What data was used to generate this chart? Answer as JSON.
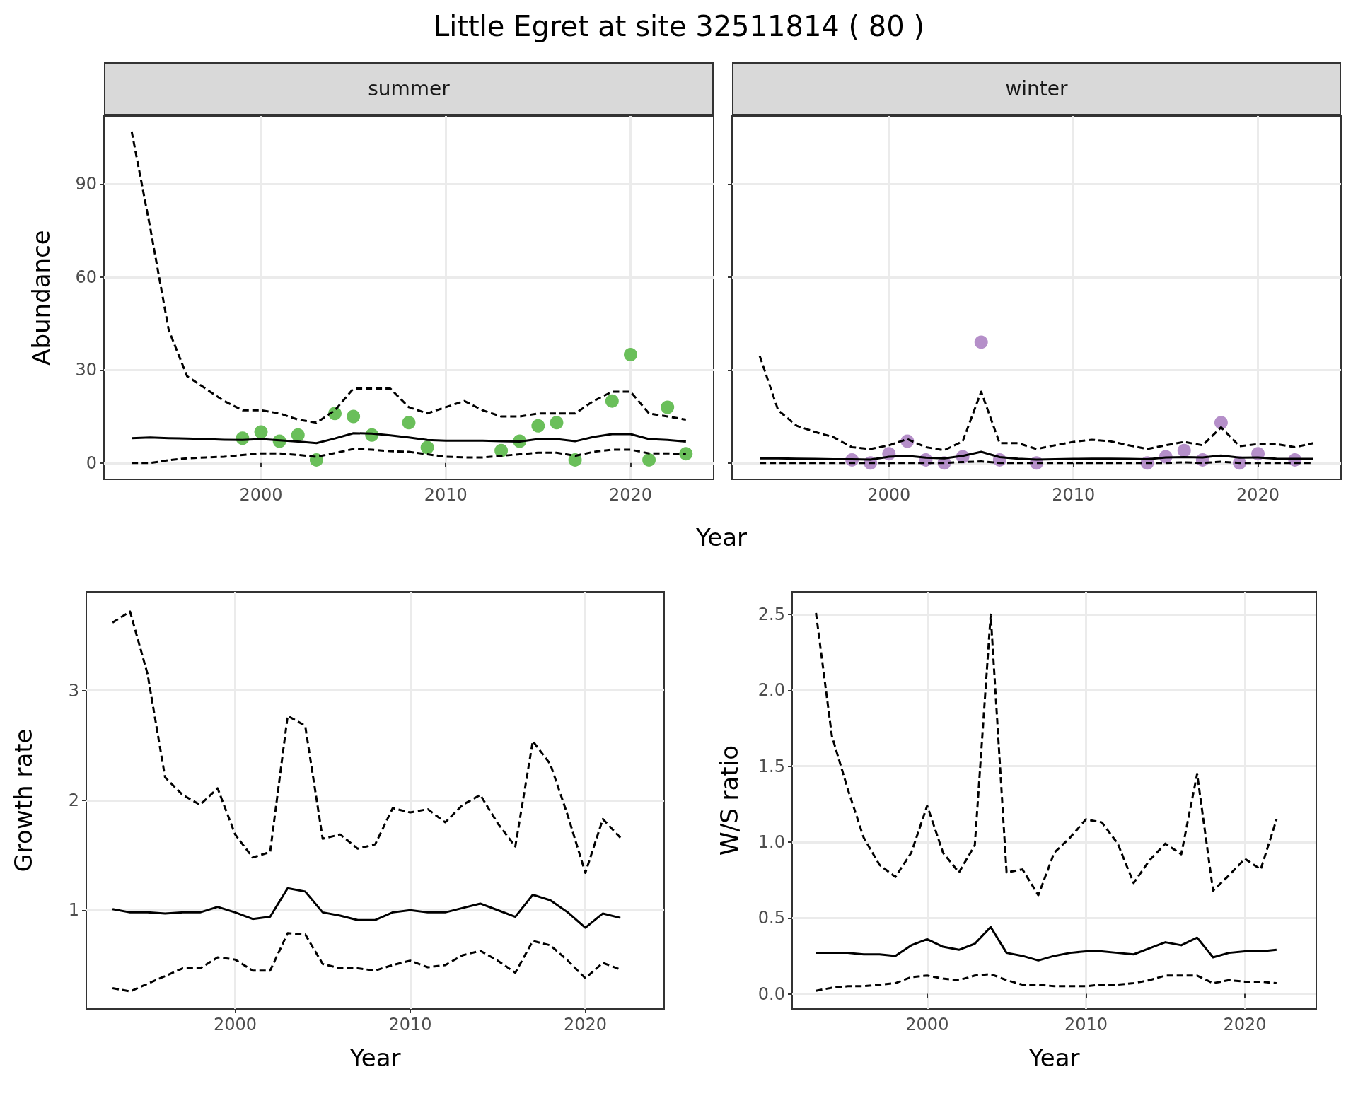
{
  "chart_data": [
    {
      "type": "line",
      "title": "Little Egret at site 32511814 ( 80 )",
      "subtitle": "summer",
      "xlabel": "Year",
      "ylabel": "Abundance",
      "xlim": [
        1991.5,
        2024.5
      ],
      "xticks": [
        2000,
        2010,
        2020
      ],
      "ylim": [
        -5.3,
        112
      ],
      "yticks": [
        0,
        30,
        60,
        90
      ],
      "grid": true,
      "marker": "none",
      "x": [
        1993,
        1994,
        1995,
        1996,
        1997,
        1998,
        1999,
        2000,
        2001,
        2002,
        2003,
        2004,
        2005,
        2006,
        2007,
        2008,
        2009,
        2010,
        2011,
        2012,
        2013,
        2014,
        2015,
        2016,
        2017,
        2018,
        2019,
        2020,
        2021,
        2022,
        2023
      ],
      "series": [
        {
          "color": "#000000",
          "line_style": "solid",
          "values": [
            8,
            8.2,
            8,
            7.9,
            7.7,
            7.5,
            7.4,
            7.7,
            7.3,
            6.9,
            6.4,
            7.9,
            9.6,
            9.5,
            8.9,
            8.2,
            7.4,
            7.2,
            7.2,
            7.2,
            7,
            6.9,
            7.7,
            7.7,
            7,
            8.4,
            9.3,
            9.3,
            7.7,
            7.4,
            6.9
          ]
        },
        {
          "color": "#000000",
          "line_style": "dashed",
          "values": [
            107,
            76,
            43,
            28,
            24,
            20,
            17,
            17,
            16,
            14,
            13,
            17,
            24,
            24,
            24,
            18,
            16,
            18,
            20,
            17,
            15,
            15,
            16,
            16,
            16,
            20,
            23,
            23,
            16,
            15,
            14
          ]
        },
        {
          "color": "#000000",
          "line_style": "dashed",
          "values": [
            0,
            0,
            0.9,
            1.5,
            1.8,
            2,
            2.6,
            3.1,
            3.1,
            2.6,
            2,
            3.2,
            4.5,
            4.3,
            3.8,
            3.6,
            2.8,
            2,
            1.8,
            1.8,
            2.3,
            2.8,
            3.3,
            3.3,
            2.3,
            3.6,
            4.3,
            4.3,
            3.1,
            3.1,
            2.9
          ]
        },
        {
          "type": "scatter",
          "color": "#6abf5a",
          "marker": "circle",
          "x": [
            1999,
            2000,
            2001,
            2002,
            2003,
            2004,
            2005,
            2006,
            2008,
            2009,
            2013,
            2014,
            2015,
            2016,
            2017,
            2019,
            2020,
            2021,
            2022,
            2023
          ],
          "values": [
            8,
            10,
            7,
            9,
            1,
            16,
            15,
            9,
            13,
            5,
            4,
            7,
            12,
            13,
            1,
            20,
            35,
            1,
            18,
            3
          ]
        }
      ]
    },
    {
      "type": "line",
      "subtitle": "winter",
      "xlim": [
        1991.5,
        2024.5
      ],
      "xticks": [
        2000,
        2010,
        2020
      ],
      "ylim": [
        -5.3,
        112
      ],
      "yticks": [
        0,
        30,
        60,
        90
      ],
      "tick_labels": "x",
      "grid": true,
      "marker": "none",
      "x": [
        1993,
        1994,
        1995,
        1996,
        1997,
        1998,
        1999,
        2000,
        2001,
        2002,
        2003,
        2004,
        2005,
        2006,
        2007,
        2008,
        2009,
        2010,
        2011,
        2012,
        2013,
        2014,
        2015,
        2016,
        2017,
        2018,
        2019,
        2020,
        2021,
        2022,
        2023
      ],
      "series": [
        {
          "color": "#000000",
          "line_style": "solid",
          "values": [
            1.5,
            1.5,
            1.4,
            1.3,
            1.2,
            1.2,
            1.1,
            2,
            2.3,
            1.7,
            1.5,
            2.3,
            3.6,
            1.9,
            1.4,
            1.1,
            1.2,
            1.3,
            1.4,
            1.4,
            1.3,
            1.2,
            1.8,
            1.9,
            1.8,
            2.4,
            1.7,
            1.8,
            1.4,
            1.3,
            1.3
          ]
        },
        {
          "color": "#000000",
          "line_style": "dashed",
          "values": [
            34.5,
            17,
            12,
            10,
            8.3,
            5.1,
            4.5,
            5.7,
            7.7,
            5.1,
            4.1,
            7,
            23,
            6.4,
            6.4,
            4.5,
            5.7,
            6.8,
            7.5,
            7,
            5.7,
            4.5,
            5.7,
            6.8,
            5.7,
            11.5,
            5.4,
            6.1,
            6.1,
            5.1,
            6.4
          ]
        },
        {
          "color": "#000000",
          "line_style": "dashed",
          "values": [
            0,
            0,
            0,
            0,
            0,
            0,
            0,
            0,
            0,
            0,
            0,
            0.3,
            0.5,
            0,
            0,
            0,
            0,
            0,
            0,
            0,
            0,
            0,
            0,
            0.2,
            0,
            0.4,
            0,
            0,
            0,
            0,
            0
          ]
        },
        {
          "type": "scatter",
          "color": "#b58fc9",
          "marker": "circle",
          "x": [
            1998,
            1999,
            2000,
            2001,
            2002,
            2003,
            2004,
            2005,
            2006,
            2008,
            2014,
            2015,
            2016,
            2017,
            2018,
            2019,
            2020,
            2022
          ],
          "values": [
            1,
            0,
            3,
            7,
            1,
            0,
            2,
            39,
            1,
            0,
            0,
            2,
            4,
            1,
            13,
            0,
            3,
            1
          ]
        }
      ]
    },
    {
      "type": "line",
      "xlabel": "Year",
      "ylabel": "Growth rate",
      "xlim": [
        1991.5,
        2024.5
      ],
      "xticks": [
        2000,
        2010,
        2020
      ],
      "ylim": [
        0.1,
        3.9
      ],
      "yticks": [
        1,
        2,
        3
      ],
      "grid": true,
      "marker": "none",
      "x": [
        1993,
        1994,
        1995,
        1996,
        1997,
        1998,
        1999,
        2000,
        2001,
        2002,
        2003,
        2004,
        2005,
        2006,
        2007,
        2008,
        2009,
        2010,
        2011,
        2012,
        2013,
        2014,
        2015,
        2016,
        2017,
        2018,
        2019,
        2020,
        2021,
        2022
      ],
      "series": [
        {
          "color": "#000000",
          "line_style": "solid",
          "values": [
            1.01,
            0.98,
            0.98,
            0.97,
            0.98,
            0.98,
            1.03,
            0.98,
            0.92,
            0.94,
            1.2,
            1.17,
            0.98,
            0.95,
            0.91,
            0.91,
            0.98,
            1,
            0.98,
            0.98,
            1.02,
            1.06,
            1,
            0.94,
            1.14,
            1.09,
            0.98,
            0.84,
            0.97,
            0.93
          ]
        },
        {
          "color": "#000000",
          "line_style": "dashed",
          "values": [
            3.62,
            3.72,
            3.15,
            2.21,
            2.05,
            1.96,
            2.11,
            1.69,
            1.48,
            1.53,
            2.77,
            2.68,
            1.65,
            1.69,
            1.56,
            1.6,
            1.93,
            1.89,
            1.92,
            1.8,
            1.96,
            2.05,
            1.79,
            1.58,
            2.54,
            2.33,
            1.86,
            1.34,
            1.83,
            1.66
          ]
        },
        {
          "color": "#000000",
          "line_style": "dashed",
          "values": [
            0.29,
            0.26,
            0.33,
            0.4,
            0.47,
            0.47,
            0.57,
            0.55,
            0.45,
            0.45,
            0.79,
            0.78,
            0.51,
            0.47,
            0.47,
            0.45,
            0.5,
            0.54,
            0.48,
            0.5,
            0.59,
            0.63,
            0.54,
            0.43,
            0.72,
            0.68,
            0.54,
            0.38,
            0.52,
            0.46
          ]
        }
      ]
    },
    {
      "type": "line",
      "xlabel": "Year",
      "ylabel": "W/S ratio",
      "xlim": [
        1991.5,
        2024.5
      ],
      "xticks": [
        2000,
        2010,
        2020
      ],
      "ylim": [
        -0.1,
        2.65
      ],
      "yticks": [
        {
          "value": 0,
          "label": "0.0"
        },
        0.5,
        {
          "value": 1,
          "label": "1.0"
        },
        1.5,
        {
          "value": 2,
          "label": "2.0"
        },
        2.5
      ],
      "grid": true,
      "marker": "none",
      "x": [
        1993,
        1994,
        1995,
        1996,
        1997,
        1998,
        1999,
        2000,
        2001,
        2002,
        2003,
        2004,
        2005,
        2006,
        2007,
        2008,
        2009,
        2010,
        2011,
        2012,
        2013,
        2014,
        2015,
        2016,
        2017,
        2018,
        2019,
        2020,
        2021,
        2022
      ],
      "series": [
        {
          "color": "#000000",
          "line_style": "solid",
          "values": [
            0.27,
            0.27,
            0.27,
            0.26,
            0.26,
            0.25,
            0.32,
            0.36,
            0.31,
            0.29,
            0.33,
            0.44,
            0.27,
            0.25,
            0.22,
            0.25,
            0.27,
            0.28,
            0.28,
            0.27,
            0.26,
            0.3,
            0.34,
            0.32,
            0.37,
            0.24,
            0.27,
            0.28,
            0.28,
            0.29
          ]
        },
        {
          "color": "#000000",
          "line_style": "dashed",
          "values": [
            2.51,
            1.7,
            1.35,
            1.03,
            0.85,
            0.77,
            0.93,
            1.24,
            0.93,
            0.8,
            0.98,
            2.5,
            0.8,
            0.82,
            0.65,
            0.93,
            1.03,
            1.15,
            1.13,
            0.99,
            0.73,
            0.88,
            0.99,
            0.92,
            1.45,
            0.68,
            0.78,
            0.89,
            0.82,
            1.15
          ]
        },
        {
          "color": "#000000",
          "line_style": "dashed",
          "values": [
            0.02,
            0.04,
            0.05,
            0.05,
            0.06,
            0.07,
            0.11,
            0.12,
            0.1,
            0.09,
            0.12,
            0.13,
            0.09,
            0.06,
            0.06,
            0.05,
            0.05,
            0.05,
            0.06,
            0.06,
            0.07,
            0.09,
            0.12,
            0.12,
            0.12,
            0.07,
            0.09,
            0.08,
            0.08,
            0.07
          ]
        }
      ]
    }
  ]
}
